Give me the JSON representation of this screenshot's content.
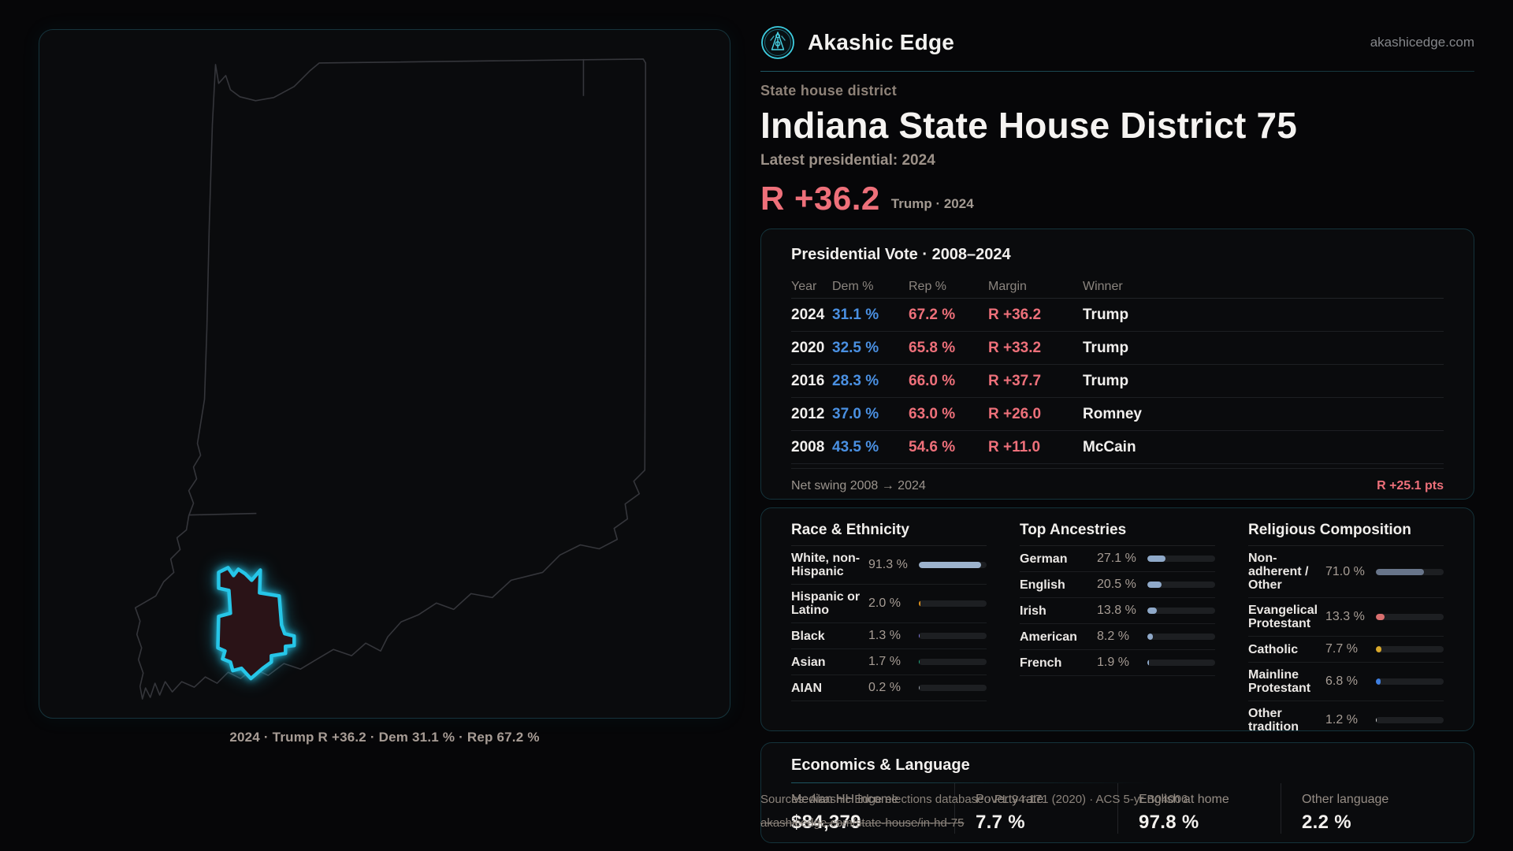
{
  "colors": {
    "dem": "#4a90e2",
    "rep": "#ee707a",
    "accent": "#2fd0f2"
  },
  "header": {
    "brand": "Akashic Edge",
    "site": "akashicedge.com"
  },
  "hero": {
    "eyebrow": "State house district",
    "title": "Indiana State House District 75",
    "latest_label": "Latest presidential: 2024",
    "margin_value": "R +36.2",
    "margin_note": "Trump · 2024"
  },
  "map": {
    "caption": "2024 · Trump R +36.2 · Dem 31.1 % · Rep 67.2 %",
    "state_stroke": "#35363b",
    "district_stroke": "#26c6e8",
    "district_fill": "#2a1317"
  },
  "vote_table": {
    "title": "Presidential Vote · 2008–2024",
    "columns": [
      "Year",
      "Dem %",
      "Rep %",
      "Margin",
      "Winner"
    ],
    "rows": [
      {
        "year": "2024",
        "dem": "31.1 %",
        "rep": "67.2 %",
        "margin": "R +36.2",
        "winner": "Trump"
      },
      {
        "year": "2020",
        "dem": "32.5 %",
        "rep": "65.8 %",
        "margin": "R +33.2",
        "winner": "Trump"
      },
      {
        "year": "2016",
        "dem": "28.3 %",
        "rep": "66.0 %",
        "margin": "R +37.7",
        "winner": "Trump"
      },
      {
        "year": "2012",
        "dem": "37.0 %",
        "rep": "63.0 %",
        "margin": "R +26.0",
        "winner": "Romney"
      },
      {
        "year": "2008",
        "dem": "43.5 %",
        "rep": "54.6 %",
        "margin": "R +11.0",
        "winner": "McCain"
      }
    ],
    "net_swing_label": "Net swing 2008 → 2024",
    "net_swing_value": "R +25.1 pts"
  },
  "panels": [
    {
      "title": "Race & Ethnicity",
      "rows": [
        {
          "label": "White, non-Hispanic",
          "value": "91.3 %",
          "pct": 91.3,
          "color": "#9db3cd"
        },
        {
          "label": "Hispanic or Latino",
          "value": "2.0 %",
          "pct": 2.0,
          "color": "#e0921c"
        },
        {
          "label": "Black",
          "value": "1.3 %",
          "pct": 1.3,
          "color": "#8078dc"
        },
        {
          "label": "Asian",
          "value": "1.7 %",
          "pct": 1.7,
          "color": "#1ca87d"
        },
        {
          "label": "AIAN",
          "value": "0.2 %",
          "pct": 0.2,
          "color": "#9aa0a8"
        }
      ]
    },
    {
      "title": "Top Ancestries",
      "rows": [
        {
          "label": "German",
          "value": "27.1 %",
          "pct": 27.1,
          "color": "#8fa9c9"
        },
        {
          "label": "English",
          "value": "20.5 %",
          "pct": 20.5,
          "color": "#8fa9c9"
        },
        {
          "label": "Irish",
          "value": "13.8 %",
          "pct": 13.8,
          "color": "#8fa9c9"
        },
        {
          "label": "American",
          "value": "8.2 %",
          "pct": 8.2,
          "color": "#8fa9c9"
        },
        {
          "label": "French",
          "value": "1.9 %",
          "pct": 1.9,
          "color": "#8fa9c9"
        }
      ]
    },
    {
      "title": "Religious Composition",
      "rows": [
        {
          "label": "Non-adherent / Other",
          "value": "71.0 %",
          "pct": 71.0,
          "color": "#68758a"
        },
        {
          "label": "Evangelical Protestant",
          "value": "13.3 %",
          "pct": 13.3,
          "color": "#d96f6f"
        },
        {
          "label": "Catholic",
          "value": "7.7 %",
          "pct": 7.7,
          "color": "#d9a82b"
        },
        {
          "label": "Mainline Protestant",
          "value": "6.8 %",
          "pct": 6.8,
          "color": "#3f7fe0"
        },
        {
          "label": "Other tradition",
          "value": "1.2 %",
          "pct": 1.2,
          "color": "#d8d8d8"
        }
      ]
    }
  ],
  "economics": {
    "title": "Economics & Language",
    "stats": [
      {
        "label": "Median HH income",
        "value": "$84,379"
      },
      {
        "label": "Poverty rate",
        "value": "7.7 %"
      },
      {
        "label": "English at home",
        "value": "97.8 %"
      },
      {
        "label": "Other language",
        "value": "2.2 %"
      }
    ]
  },
  "footer": {
    "line1": "Sources: Akashic Edge elections database · PL 94-171 (2020) · ACS 5-yr B04006",
    "line2": "akashicedge.com/state-house/in-hd-75"
  }
}
